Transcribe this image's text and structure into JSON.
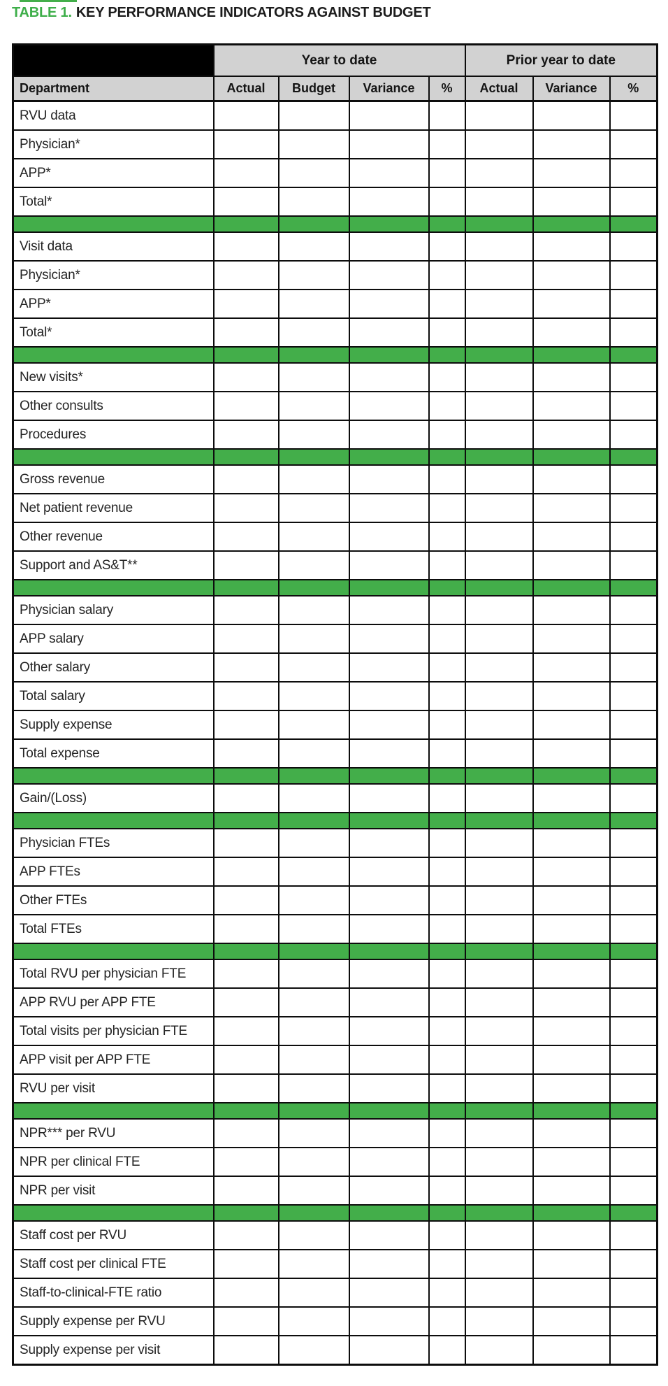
{
  "title": {
    "number": "TABLE 1.",
    "text": "KEY PERFORMANCE INDICATORS AGAINST BUDGET"
  },
  "colors": {
    "brand_green": "#43ae4a",
    "header_gray": "#d2d2d2",
    "corner_black": "#000000",
    "border_black": "#0d0d0d"
  },
  "table": {
    "col_groups": [
      {
        "label": "",
        "span": 1
      },
      {
        "label": "Year to date",
        "span": 4
      },
      {
        "label": "Prior year to date",
        "span": 3
      }
    ],
    "columns": [
      "Department",
      "Actual",
      "Budget",
      "Variance",
      "%",
      "Actual",
      "Variance",
      "%"
    ],
    "value_columns_count": 7,
    "cell_value_placeholder": "",
    "sections": [
      {
        "rows": [
          "RVU data",
          "Physician*",
          "APP*",
          "Total*"
        ]
      },
      {
        "rows": [
          "Visit data",
          "Physician*",
          "APP*",
          "Total*"
        ]
      },
      {
        "rows": [
          "New visits*",
          "Other consults",
          "Procedures"
        ]
      },
      {
        "rows": [
          "Gross revenue",
          "Net patient revenue",
          "Other revenue",
          "Support and AS&T**"
        ]
      },
      {
        "rows": [
          "Physician salary",
          "APP salary",
          "Other salary",
          "Total salary",
          "Supply expense",
          "Total expense"
        ]
      },
      {
        "rows": [
          "Gain/(Loss)"
        ]
      },
      {
        "rows": [
          "Physician FTEs",
          "APP FTEs",
          "Other FTEs",
          "Total FTEs"
        ]
      },
      {
        "rows": [
          "Total RVU per physician FTE",
          "APP RVU per APP FTE",
          "Total visits per physician FTE",
          "APP visit per APP FTE",
          "RVU per visit"
        ]
      },
      {
        "rows": [
          "NPR*** per RVU",
          "NPR per clinical FTE",
          "NPR per visit"
        ]
      },
      {
        "rows": [
          "Staff cost per RVU",
          "Staff cost per clinical FTE",
          "Staff-to-clinical-FTE ratio",
          "Supply expense per RVU",
          "Supply expense per visit"
        ]
      }
    ]
  }
}
